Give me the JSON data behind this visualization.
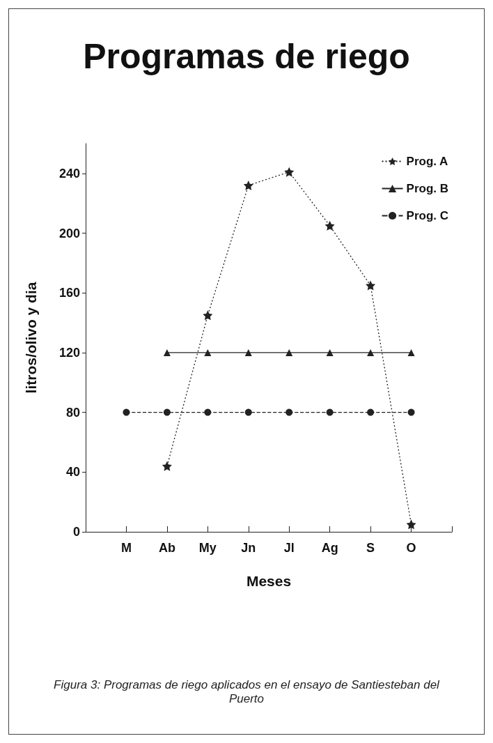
{
  "chart_data": {
    "type": "line",
    "title": "Programas de riego",
    "xlabel": "Meses",
    "ylabel": "litros/olivo y dia",
    "categories": [
      null,
      "M",
      "Ab",
      "My",
      "Jn",
      "Jl",
      "Ag",
      "S",
      "O",
      null
    ],
    "series": [
      {
        "name": "Prog. A",
        "color": "#222222",
        "marker": "star",
        "line_style": "dotted",
        "values": [
          null,
          null,
          44,
          145,
          232,
          241,
          205,
          165,
          5,
          null
        ]
      },
      {
        "name": "Prog. B",
        "color": "#222222",
        "marker": "triangle",
        "line_style": "solid",
        "values": [
          null,
          null,
          120,
          120,
          120,
          120,
          120,
          120,
          120,
          null
        ]
      },
      {
        "name": "Prog. C",
        "color": "#222222",
        "marker": "circle",
        "line_style": "dashed",
        "values": [
          null,
          80,
          80,
          80,
          80,
          80,
          80,
          80,
          80,
          null
        ]
      }
    ],
    "ylim": [
      0,
      260
    ],
    "yticks": [
      0,
      40,
      80,
      120,
      160,
      200,
      240
    ],
    "grid": false,
    "legend": "top right",
    "annotations": [
      "Figura 3: Programas de riego aplicados en el ensayo de Santiesteban del Puerto"
    ]
  }
}
